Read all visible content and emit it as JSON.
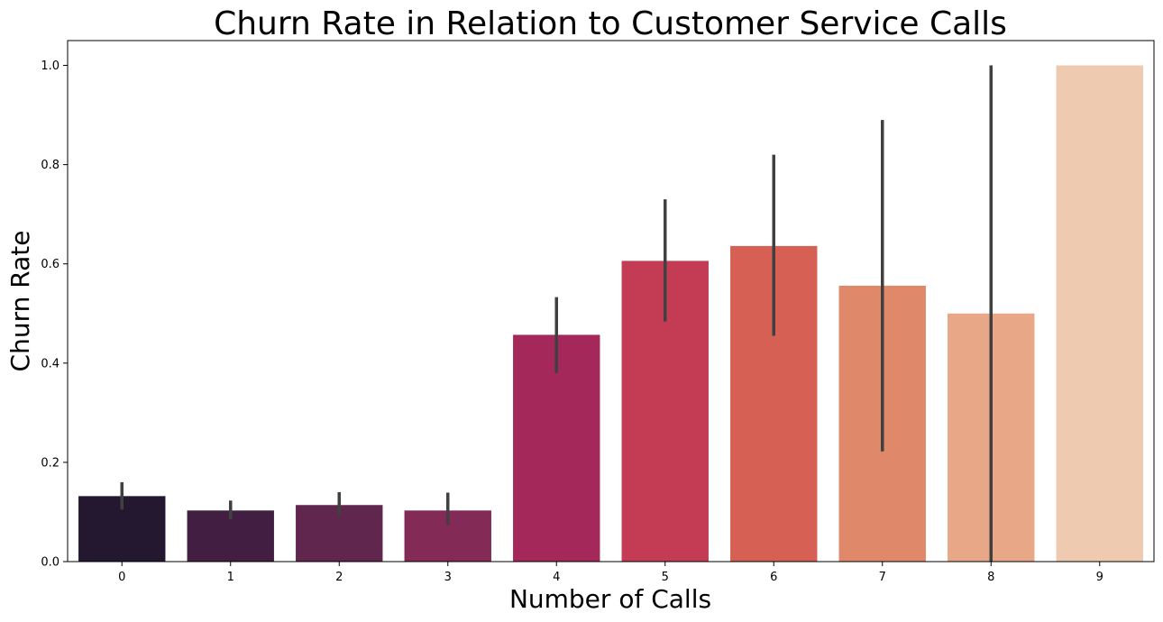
{
  "chart_data": {
    "type": "bar",
    "title": "Churn Rate in Relation to Customer Service Calls",
    "xlabel": "Number of Calls",
    "ylabel": "Churn Rate",
    "categories": [
      "0",
      "1",
      "2",
      "3",
      "4",
      "5",
      "6",
      "7",
      "8",
      "9"
    ],
    "values": [
      0.132,
      0.103,
      0.114,
      0.103,
      0.457,
      0.606,
      0.636,
      0.556,
      0.5,
      1.0
    ],
    "error_low": [
      0.105,
      0.085,
      0.09,
      0.074,
      0.38,
      0.484,
      0.455,
      0.222,
      0.0,
      1.0
    ],
    "error_high": [
      0.16,
      0.123,
      0.14,
      0.139,
      0.533,
      0.73,
      0.82,
      0.89,
      1.0,
      1.0
    ],
    "colors": [
      "#231830",
      "#421f42",
      "#61264d",
      "#832a57",
      "#a4295a",
      "#c33c54",
      "#d66054",
      "#e0886a",
      "#e8a888",
      "#eecab1"
    ],
    "error_bar_color": "#404040",
    "yticks": [
      "0.0",
      "0.2",
      "0.4",
      "0.6",
      "0.8",
      "1.0"
    ],
    "ylim": [
      0,
      1.05
    ],
    "grid": false,
    "legend": "none"
  }
}
